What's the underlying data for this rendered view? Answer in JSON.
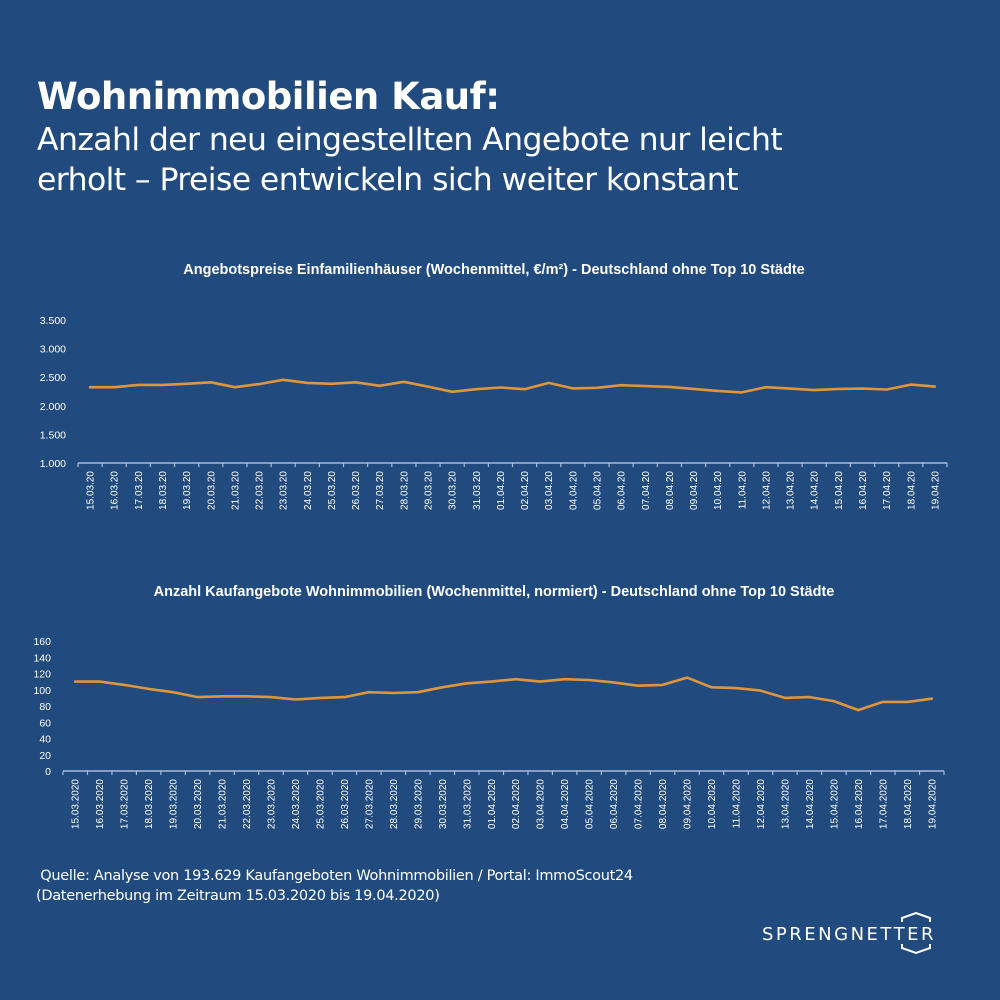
{
  "header": {
    "title": "Wohnimmobilien Kauf:",
    "subtitle_line1": "Anzahl der neu eingestellten Angebote nur leicht",
    "subtitle_line2": "erholt – Preise entwickeln sich weiter konstant"
  },
  "colors": {
    "background": "#214a7e",
    "line": "#e0953a",
    "axis": "#a9bcd8",
    "text": "#ffffff"
  },
  "chart_data": [
    {
      "type": "line",
      "title": "Angebotspreise Einfamilienhäuser (Wochenmittel, €/m²) - Deutschland ohne Top 10 Städte",
      "xlabel": "",
      "ylabel": "",
      "ylim": [
        1000,
        3500
      ],
      "yticks": [
        1000,
        1500,
        2000,
        2500,
        3000,
        3500
      ],
      "ytick_labels": [
        "1.000",
        "1.500",
        "2.000",
        "2.500",
        "3.000",
        "3.500"
      ],
      "grid": false,
      "legend": "none",
      "categories": [
        "15.03.20",
        "16.03.20",
        "17.03.20",
        "18.03.20",
        "19.03.20",
        "20.03.20",
        "21.03.20",
        "22.03.20",
        "23.03.20",
        "24.03.20",
        "25.03.20",
        "26.03.20",
        "27.03.20",
        "28.03.20",
        "29.03.20",
        "30.03.20",
        "31.03.20",
        "01.04.20",
        "02.04.20",
        "03.04.20",
        "04.04.20",
        "05.04.20",
        "06.04.20",
        "07.04.20",
        "08.04.20",
        "09.04.20",
        "10.04.20",
        "11.04.20",
        "12.04.20",
        "13.04.20",
        "14.04.20",
        "15.04.20",
        "16.04.20",
        "17.04.20",
        "18.04.20",
        "19.04.20"
      ],
      "series": [
        {
          "name": "Angebotspreise Einfamilienhäuser",
          "values": [
            2325,
            2325,
            2365,
            2365,
            2385,
            2410,
            2325,
            2380,
            2455,
            2400,
            2385,
            2410,
            2350,
            2420,
            2335,
            2245,
            2290,
            2320,
            2290,
            2400,
            2305,
            2315,
            2360,
            2345,
            2330,
            2295,
            2260,
            2235,
            2325,
            2300,
            2275,
            2295,
            2300,
            2285,
            2370,
            2335
          ]
        }
      ]
    },
    {
      "type": "line",
      "title": "Anzahl Kaufangebote Wohnimmobilien (Wochenmittel, normiert) - Deutschland ohne Top 10 Städte",
      "xlabel": "",
      "ylabel": "",
      "ylim": [
        0,
        160
      ],
      "yticks": [
        0,
        20,
        40,
        60,
        80,
        100,
        120,
        140,
        160
      ],
      "ytick_labels": [
        "0",
        "20",
        "40",
        "60",
        "80",
        "100",
        "120",
        "140",
        "160"
      ],
      "grid": false,
      "legend": "none",
      "categories": [
        "15.03.2020",
        "16.03.2020",
        "17.03.2020",
        "18.03.2020",
        "19.03.2020",
        "20.03.2020",
        "21.03.2020",
        "22.03.2020",
        "23.03.2020",
        "24.03.2020",
        "25.03.2020",
        "26.03.2020",
        "27.03.2020",
        "28.03.2020",
        "29.03.2020",
        "30.03.2020",
        "31.03.2020",
        "01.04.2020",
        "02.04.2020",
        "03.04.2020",
        "04.04.2020",
        "05.04.2020",
        "06.04.2020",
        "07.04.2020",
        "08.04.2020",
        "09.04.2020",
        "10.04.2020",
        "11.04.2020",
        "12.04.2020",
        "13.04.2020",
        "14.04.2020",
        "15.04.2020",
        "16.04.2020",
        "17.04.2020",
        "18.04.2020",
        "19.04.2020"
      ],
      "series": [
        {
          "name": "Anzahl Kaufangebote Wohnimmobilien",
          "values": [
            110,
            110,
            106,
            101,
            97,
            91,
            92,
            92,
            91,
            88,
            90,
            91,
            97,
            96,
            97,
            103,
            108,
            110,
            113,
            110,
            113,
            112,
            109,
            105,
            106,
            115,
            103,
            102,
            99,
            90,
            91,
            86,
            75,
            85,
            85,
            89
          ]
        }
      ]
    }
  ],
  "footer": {
    "source_line1": " Quelle: Analyse von 193.629 Kaufangeboten Wohnimmobilien / Portal: ImmoScout24",
    "source_line2": "(Datenerhebung im Zeitraum 15.03.2020 bis 19.04.2020)",
    "logo_text": "SPRENGNETTER"
  }
}
